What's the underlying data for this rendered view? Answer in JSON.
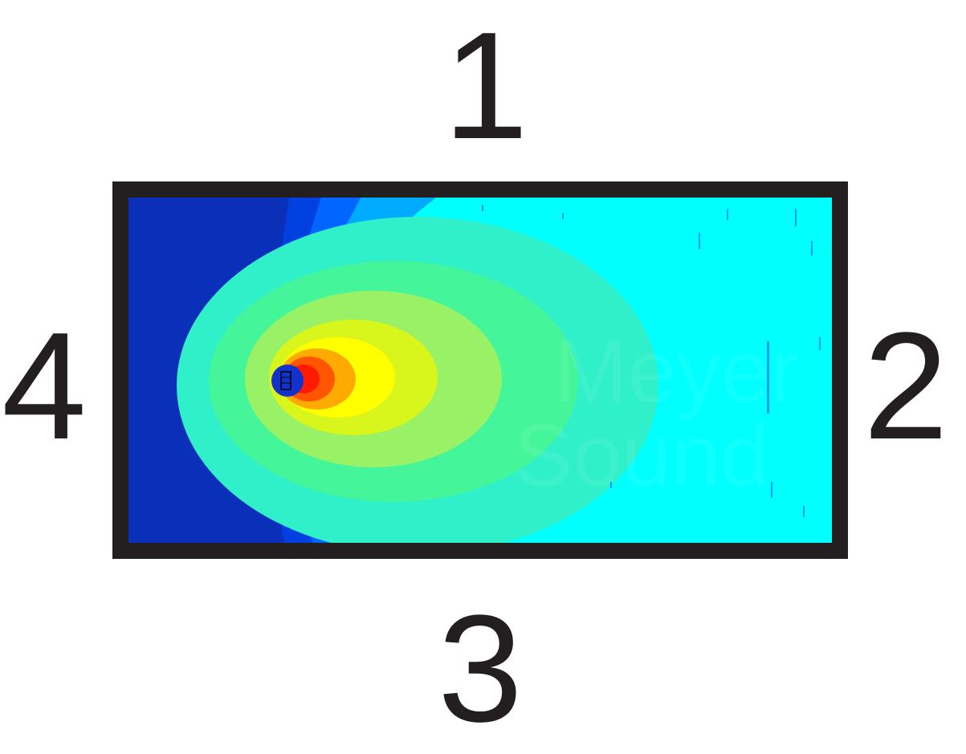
{
  "wall_labels": {
    "top": "1",
    "right": "2",
    "bottom": "3",
    "left": "4"
  },
  "watermark": {
    "line1": "Meyer",
    "line2": "Sound"
  },
  "colors": {
    "wall": "#231f20",
    "field_far": "#00ffff",
    "field_mid": "#34f5a8",
    "field_near": "#ffff00",
    "field_peak": "#ff3300",
    "field_back": "#0a2fb8",
    "speaker": "#1133cc"
  },
  "icons": {
    "speaker": "loudspeaker-icon"
  }
}
